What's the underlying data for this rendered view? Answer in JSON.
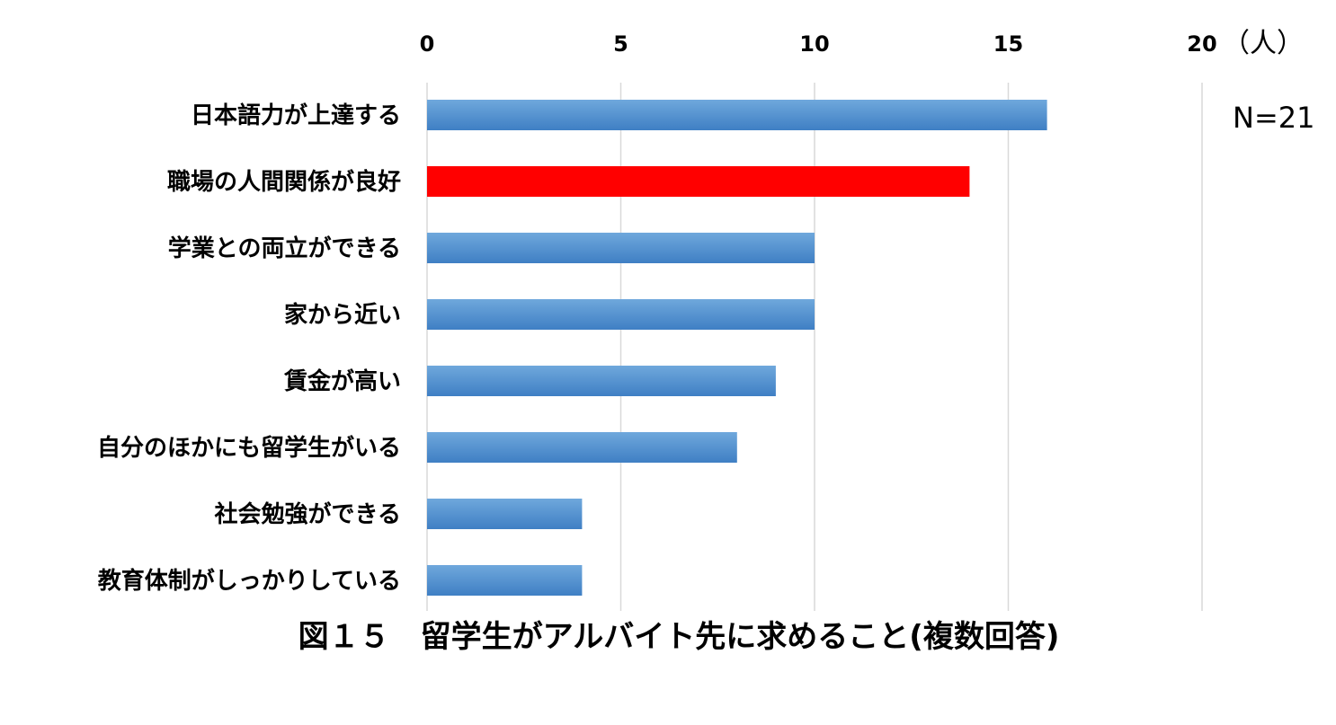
{
  "chart_data": {
    "type": "bar",
    "orientation": "horizontal",
    "title": "図１５　留学生がアルバイト先に求めること(複数回答)",
    "unit_label": "（人）",
    "annotation": "N=21",
    "categories": [
      "日本語力が上達する",
      "職場の人間関係が良好",
      "学業との両立ができる",
      "家から近い",
      "賃金が高い",
      "自分のほかにも留学生がいる",
      "社会勉強ができる",
      "教育体制がしっかりしている"
    ],
    "values": [
      16,
      14,
      10,
      10,
      9,
      8,
      4,
      4
    ],
    "xlim": [
      0,
      20
    ],
    "ticks": [
      "0",
      "5",
      "10",
      "15",
      "20"
    ],
    "tick_values": [
      0,
      5,
      10,
      15,
      20
    ],
    "axis_position": "top",
    "grid": true,
    "highlight_index": 1,
    "colors": {
      "bar_top": "#6fa8dc",
      "bar_bottom": "#3f7fc4",
      "highlight": "#ff0000",
      "grid": "#d9d9d9"
    }
  }
}
